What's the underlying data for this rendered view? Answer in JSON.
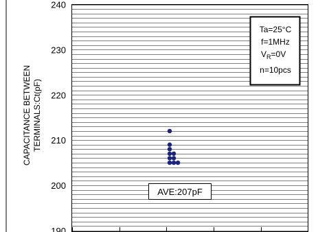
{
  "chart_data": {
    "type": "scatter",
    "ylabel_line1": "CAPACITANCE BETWEEN",
    "ylabel_line2": "TERMINALS:Ct(pF)",
    "ylim": [
      190,
      240
    ],
    "y_ticks": [
      190,
      200,
      210,
      220,
      230,
      240
    ],
    "y_tick_labels": [
      "190",
      "200",
      "210",
      "220",
      "230",
      "240"
    ],
    "y_minor_step": 1,
    "grid": "horizontal lines every 1 pF",
    "points": [
      {
        "x": 0,
        "y": 212
      },
      {
        "x": 0,
        "y": 209
      },
      {
        "x": 0,
        "y": 208
      },
      {
        "x": 0,
        "y": 207
      },
      {
        "x": 0,
        "y": 206
      },
      {
        "x": 0,
        "y": 205
      },
      {
        "x": 1,
        "y": 207
      },
      {
        "x": 1,
        "y": 206
      },
      {
        "x": 1,
        "y": 205
      },
      {
        "x": 2,
        "y": 205
      }
    ],
    "point_color": "#1a237e",
    "conditions": {
      "temp": "Ta=25°C",
      "freq": "f=1MHz",
      "vr_main": "V",
      "vr_sub": "R",
      "vr_value": "=0V",
      "count": "n=10pcs"
    },
    "average_label": "AVE:207pF"
  }
}
